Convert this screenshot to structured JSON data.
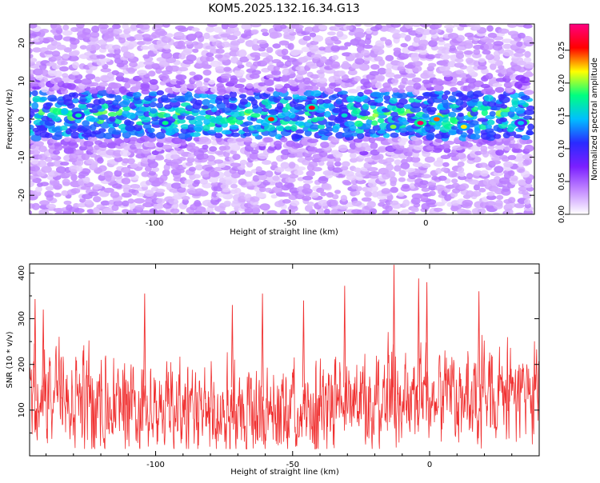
{
  "title": "KOM5.2025.132.16.34.G13",
  "chart_data": [
    {
      "type": "heatmap",
      "xlabel": "Height of straight line (km)",
      "ylabel": "Frequency (Hz)",
      "xlim": [
        -146,
        40
      ],
      "ylim": [
        -25,
        25
      ],
      "x_ticks": [
        -100,
        -50,
        0
      ],
      "y_ticks": [
        -20,
        -10,
        0,
        10,
        20
      ],
      "band_center_hz": 1,
      "band_halfwidth_hz": 6,
      "colorbar": {
        "label": "Normalized spectral amplitude",
        "range": [
          0,
          0.29
        ],
        "ticks": [
          0.0,
          0.05,
          0.1,
          0.15,
          0.2,
          0.25
        ],
        "colors": [
          "#ffffff",
          "#c48bff",
          "#7b1fff",
          "#2a2aff",
          "#00bfff",
          "#00ff80",
          "#ffff00",
          "#ff0000",
          "#ff0080"
        ]
      },
      "hotspots": [
        {
          "x": -2,
          "y": -1,
          "v": 0.28
        },
        {
          "x": -42,
          "y": 3,
          "v": 0.26
        },
        {
          "x": -57,
          "y": 0,
          "v": 0.25
        },
        {
          "x": 4,
          "y": 0,
          "v": 0.24
        },
        {
          "x": 14,
          "y": -2,
          "v": 0.22
        },
        {
          "x": -12,
          "y": -2,
          "v": 0.2
        },
        {
          "x": -96,
          "y": -1,
          "v": 0.18
        },
        {
          "x": -128,
          "y": 1,
          "v": 0.17
        },
        {
          "x": -30,
          "y": 1,
          "v": 0.16
        },
        {
          "x": 35,
          "y": -1,
          "v": 0.15
        }
      ]
    },
    {
      "type": "line",
      "xlabel": "Height of straight line (km)",
      "ylabel": "SNR (10 * v/v)",
      "xlim": [
        -146,
        40
      ],
      "ylim": [
        0,
        420
      ],
      "x_ticks": [
        -100,
        -50,
        0
      ],
      "y_ticks": [
        100,
        200,
        300,
        400
      ],
      "color": "#f03030",
      "typical_range": [
        30,
        250
      ],
      "peaks": [
        {
          "x": -144,
          "y": 343
        },
        {
          "x": -141,
          "y": 320
        },
        {
          "x": -104,
          "y": 355
        },
        {
          "x": -72,
          "y": 330
        },
        {
          "x": -61,
          "y": 355
        },
        {
          "x": -46,
          "y": 340
        },
        {
          "x": -31,
          "y": 372
        },
        {
          "x": -13,
          "y": 418
        },
        {
          "x": -4,
          "y": 388
        },
        {
          "x": -1,
          "y": 380
        },
        {
          "x": 18,
          "y": 360
        }
      ]
    }
  ]
}
